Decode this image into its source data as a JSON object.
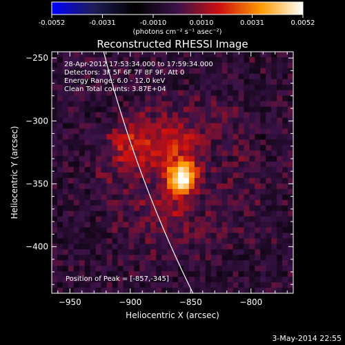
{
  "chart_data": {
    "type": "heatmap",
    "title": "Reconstructed RHESSI Image",
    "xlabel": "Heliocentric X (arcsec)",
    "ylabel": "Heliocentric Y (arcsec)",
    "xlim": [
      -965,
      -765
    ],
    "ylim": [
      -437,
      -245
    ],
    "xticks": [
      -950,
      -900,
      -850,
      -800
    ],
    "yticks": [
      -250,
      -300,
      -350,
      -400
    ],
    "colorbar": {
      "range": [
        -0.0052,
        0.0052
      ],
      "ticks": [
        -0.0052,
        -0.0031,
        -0.001,
        0.001,
        0.0031,
        0.0052
      ],
      "tick_labels": [
        "-0.0052",
        "-0.0031",
        "-0.0010",
        "0.0010",
        "0.0031",
        "0.0052"
      ],
      "units": "(photons cm⁻² s⁻¹ asec⁻²)",
      "colors": [
        "#0000ff",
        "#1f1d55",
        "#000000",
        "#3a1248",
        "#cc1010",
        "#ff9a00",
        "#ffffff"
      ]
    },
    "annotations": [
      "28-Apr-2012 17:53:34.000 to 17:59:34.000",
      "Detectors: 3F 5F 6F 7F 8F 9F, Att 0",
      "Energy Range: 6.0 - 12.0 keV",
      "Clean     Total counts: 3.87E+04"
    ],
    "peak_label": "Position of Peak = [-857,-345]",
    "peak": [
      -857,
      -345
    ],
    "sources": [
      {
        "x": -857,
        "y": -345,
        "sigma": 8,
        "amplitude": 0.0052
      },
      {
        "x": -862,
        "y": -320,
        "sigma": 15,
        "amplitude": 0.0016
      },
      {
        "x": -898,
        "y": -320,
        "sigma": 14,
        "amplitude": 0.0017
      },
      {
        "x": -870,
        "y": -370,
        "sigma": 14,
        "amplitude": 0.0012
      }
    ],
    "limb_circle": {
      "center": [
        0,
        0
      ],
      "radius_arcsec": 954
    },
    "timestamp": "3-May-2014 22:55"
  }
}
